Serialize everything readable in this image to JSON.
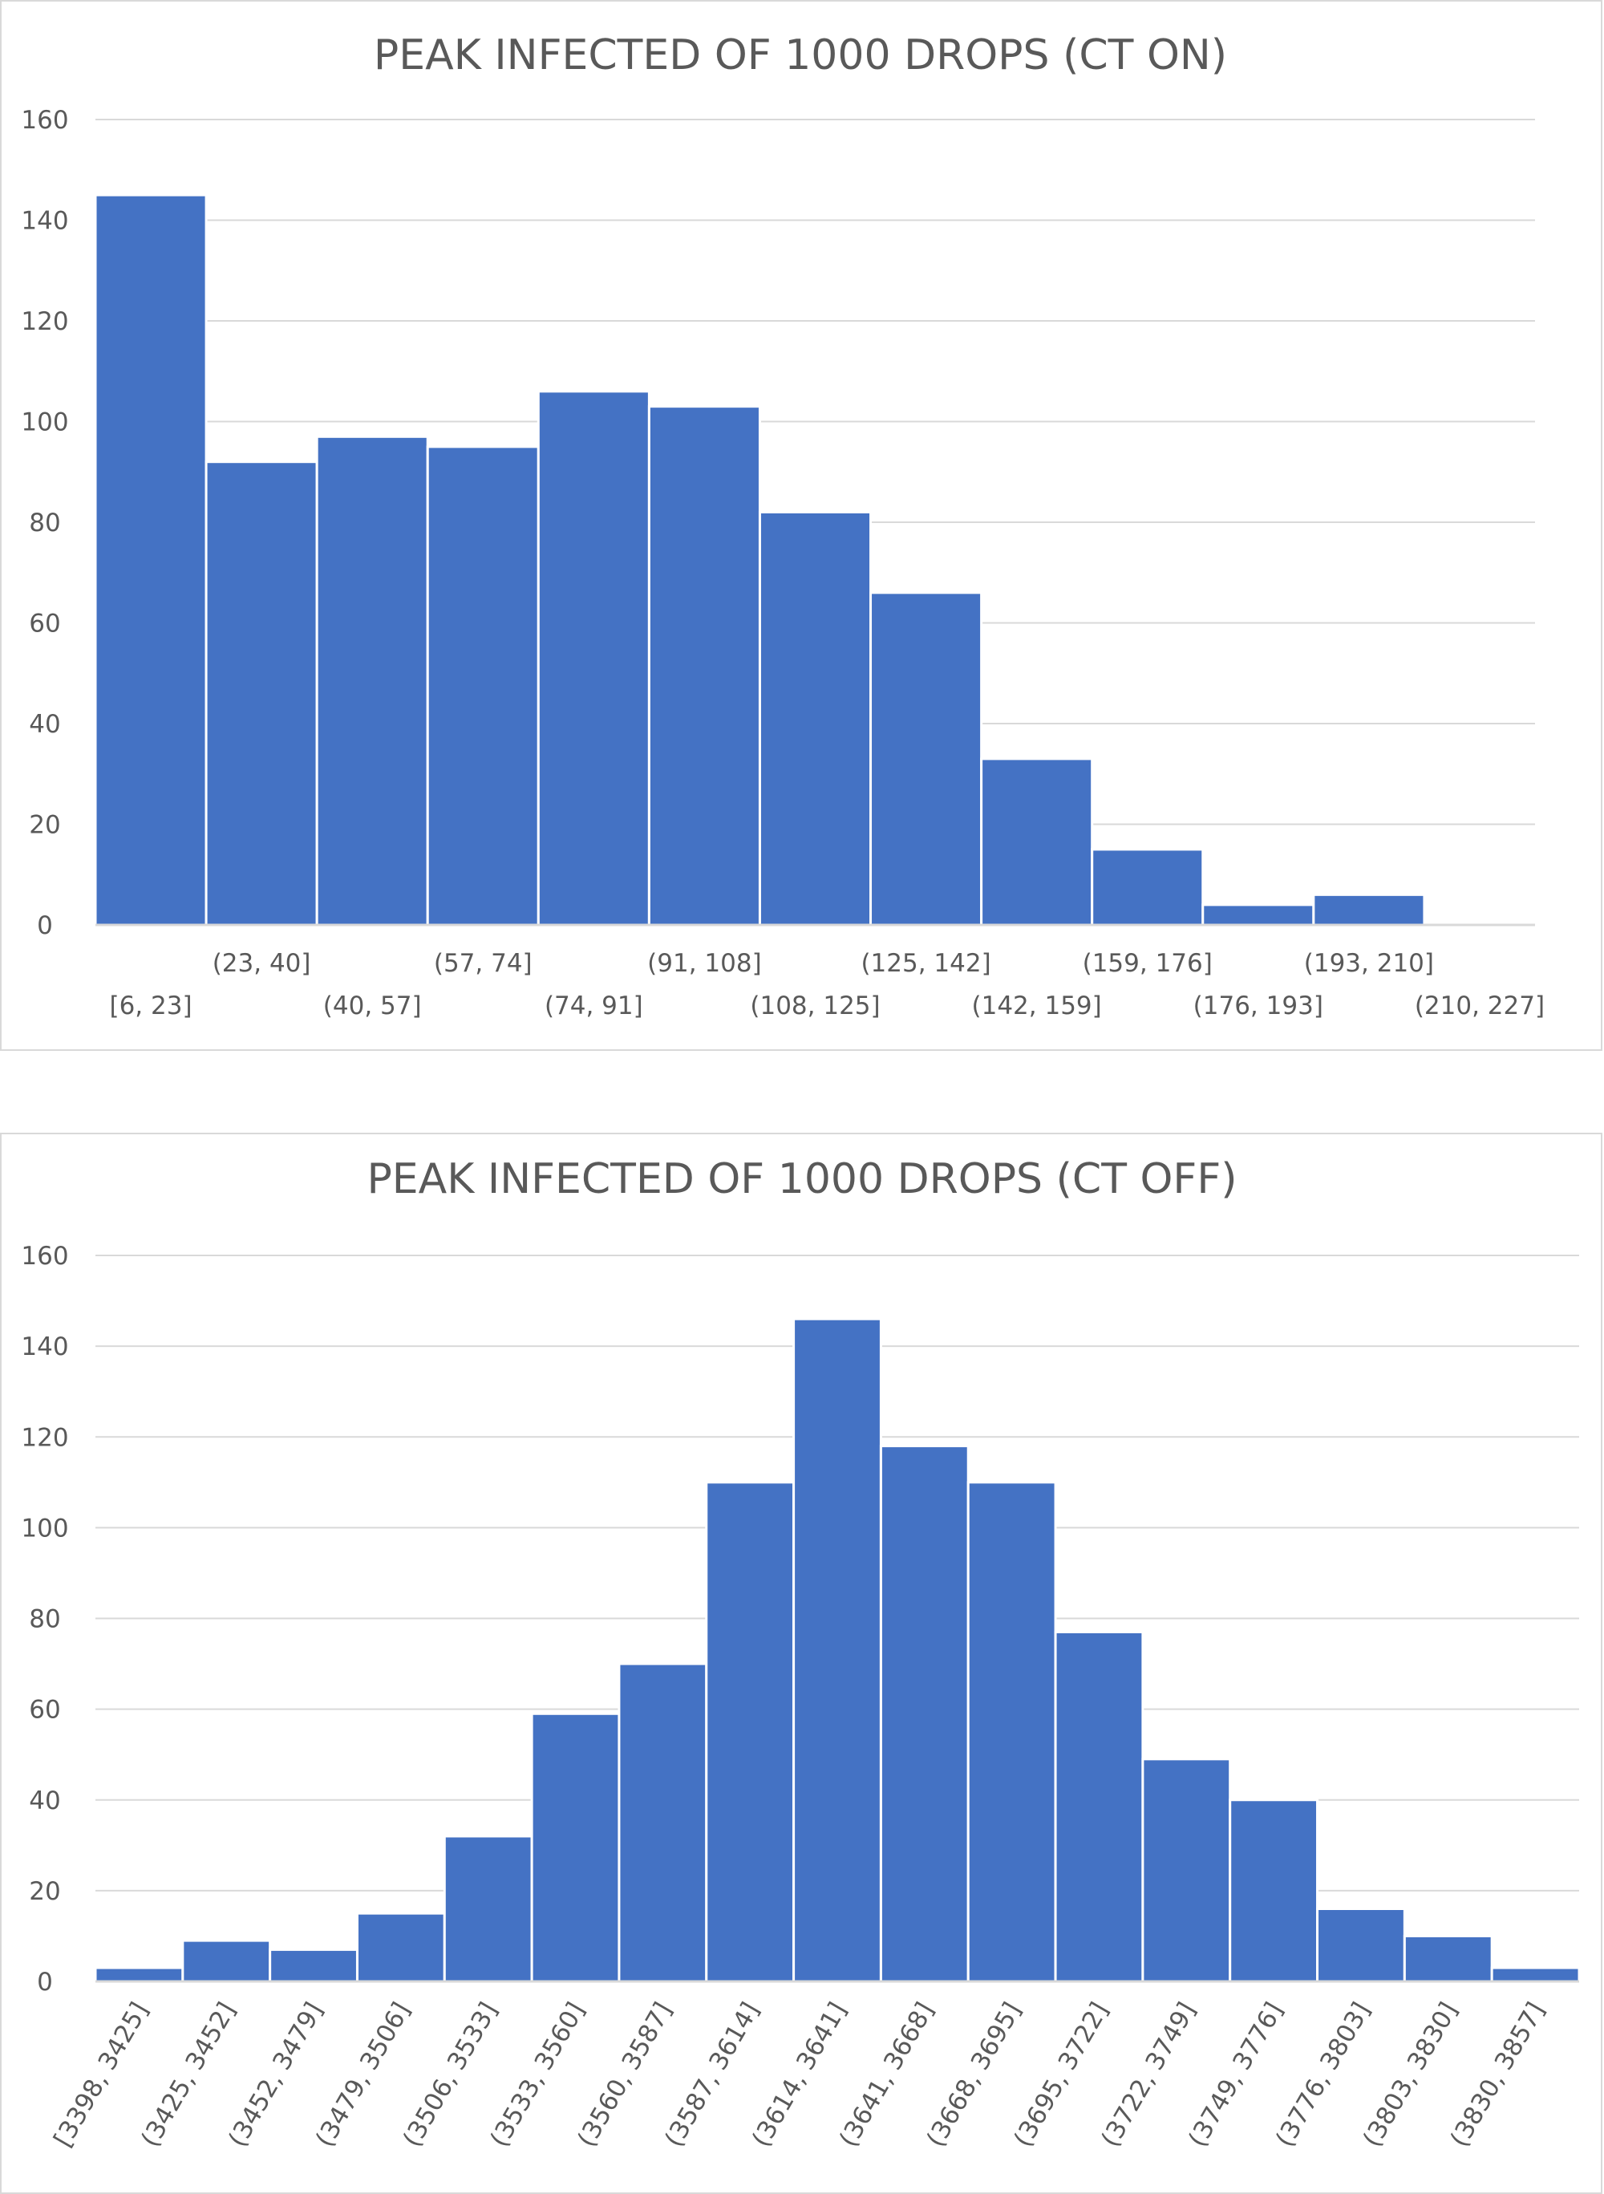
{
  "chart_data": [
    {
      "type": "bar",
      "title": "PEAK INFECTED OF 1000 DROPS (CT ON)",
      "xlabel": "",
      "ylabel": "",
      "ylim": [
        0,
        160
      ],
      "yticks": [
        0,
        20,
        40,
        60,
        80,
        100,
        120,
        140,
        160
      ],
      "grid": true,
      "legend": "none",
      "bar_color": "#4472c4",
      "label_layout": "staggered",
      "categories": [
        "[6, 23]",
        "(23, 40]",
        "(40, 57]",
        "(57, 74]",
        "(74, 91]",
        "(91, 108]",
        "(108, 125]",
        "(125, 142]",
        "(142, 159]",
        "(159, 176]",
        "(176, 193]",
        "(193, 210]",
        "(210, 227]"
      ],
      "values": [
        145,
        92,
        97,
        95,
        106,
        103,
        82,
        66,
        33,
        15,
        4,
        6,
        0
      ]
    },
    {
      "type": "bar",
      "title": "PEAK INFECTED OF 1000 DROPS (CT OFF)",
      "xlabel": "",
      "ylabel": "",
      "ylim": [
        0,
        160
      ],
      "yticks": [
        0,
        20,
        40,
        60,
        80,
        100,
        120,
        140,
        160
      ],
      "grid": true,
      "legend": "none",
      "bar_color": "#4472c4",
      "label_layout": "rotated",
      "categories": [
        "[3398, 3425]",
        "(3425, 3452]",
        "(3452, 3479]",
        "(3479, 3506]",
        "(3506, 3533]",
        "(3533, 3560]",
        "(3560, 3587]",
        "(3587, 3614]",
        "(3614, 3641]",
        "(3641, 3668]",
        "(3668, 3695]",
        "(3695, 3722]",
        "(3722, 3749]",
        "(3749, 3776]",
        "(3776, 3803]",
        "(3803, 3830]",
        "(3830, 3857]"
      ],
      "values": [
        3,
        9,
        7,
        15,
        32,
        59,
        70,
        110,
        146,
        118,
        110,
        77,
        49,
        40,
        16,
        10,
        3
      ]
    }
  ]
}
